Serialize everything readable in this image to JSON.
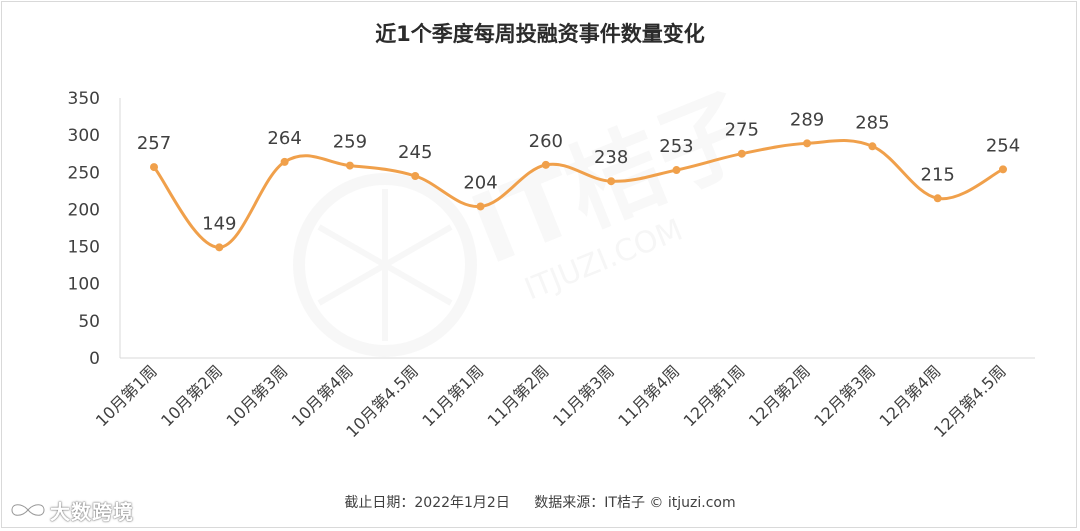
{
  "chart_data": {
    "type": "line",
    "title": "近1个季度每周投融资事件数量变化",
    "categories": [
      "10月第1周",
      "10月第2周",
      "10月第3周",
      "10月第4周",
      "10月第4.5周",
      "11月第1周",
      "11月第2周",
      "11月第3周",
      "11月第4周",
      "12月第1周",
      "12月第2周",
      "12月第3周",
      "12月第4周",
      "12月第4.5周"
    ],
    "values": [
      257,
      149,
      264,
      259,
      245,
      204,
      260,
      238,
      253,
      275,
      289,
      285,
      215,
      254
    ],
    "yticks": [
      "0",
      "50",
      "100",
      "150",
      "200",
      "250",
      "300",
      "350"
    ],
    "ylim": [
      0,
      350
    ],
    "grid": false,
    "legend": "none",
    "line_color": "#f0a04b",
    "label_color": "#404040"
  },
  "footer": {
    "date_text": "截止日期：2022年1月2日",
    "source_text": "数据来源：IT桔子 © itjuzi.com"
  },
  "watermark": {
    "text": "IT桔子",
    "url_text": "ITJUZI.COM",
    "brand_text": "大数跨境"
  },
  "icons": {
    "watermark_logo": "orange-slice-icon",
    "brand_logo": "infinity-icon"
  }
}
